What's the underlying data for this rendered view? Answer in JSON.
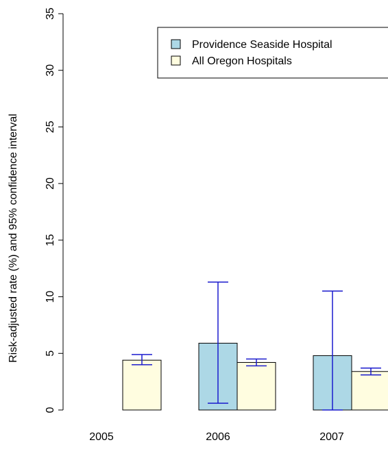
{
  "chart_data": {
    "type": "bar",
    "ylabel": "Risk-adjusted rate (%) and 95% confidence interval",
    "xlabel": "",
    "title": "",
    "ylim": [
      0,
      35
    ],
    "yticks": [
      0,
      5,
      10,
      15,
      20,
      25,
      30,
      35
    ],
    "categories": [
      "2005",
      "2006",
      "2007"
    ],
    "series": [
      {
        "name": "Providence Seaside Hospital",
        "color": "#add8e6",
        "values": [
          null,
          5.9,
          4.8
        ],
        "ci_low": [
          null,
          0.6,
          0.0
        ],
        "ci_high": [
          null,
          11.3,
          10.5
        ]
      },
      {
        "name": "All Oregon Hospitals",
        "color": "#fffde0",
        "values": [
          4.4,
          4.2,
          3.4
        ],
        "ci_low": [
          4.0,
          3.9,
          3.1
        ],
        "ci_high": [
          4.9,
          4.5,
          3.7
        ]
      }
    ],
    "errorbar_color": "#1a1acd",
    "legend_position": "top-right"
  }
}
